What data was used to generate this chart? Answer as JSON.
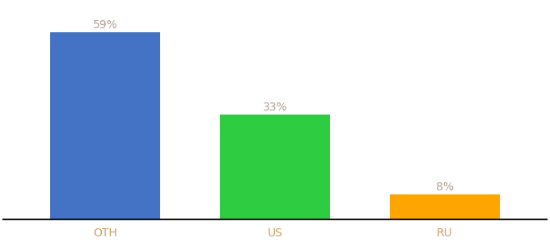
{
  "categories": [
    "OTH",
    "US",
    "RU"
  ],
  "values": [
    59,
    33,
    8
  ],
  "bar_colors": [
    "#4472C4",
    "#2ECC40",
    "#FFA500"
  ],
  "labels": [
    "59%",
    "33%",
    "8%"
  ],
  "label_color": "#b0a090",
  "tick_color": "#c8a060",
  "ylim": [
    0,
    68
  ],
  "background_color": "#ffffff",
  "label_fontsize": 10,
  "tick_fontsize": 10,
  "bar_width": 0.65
}
